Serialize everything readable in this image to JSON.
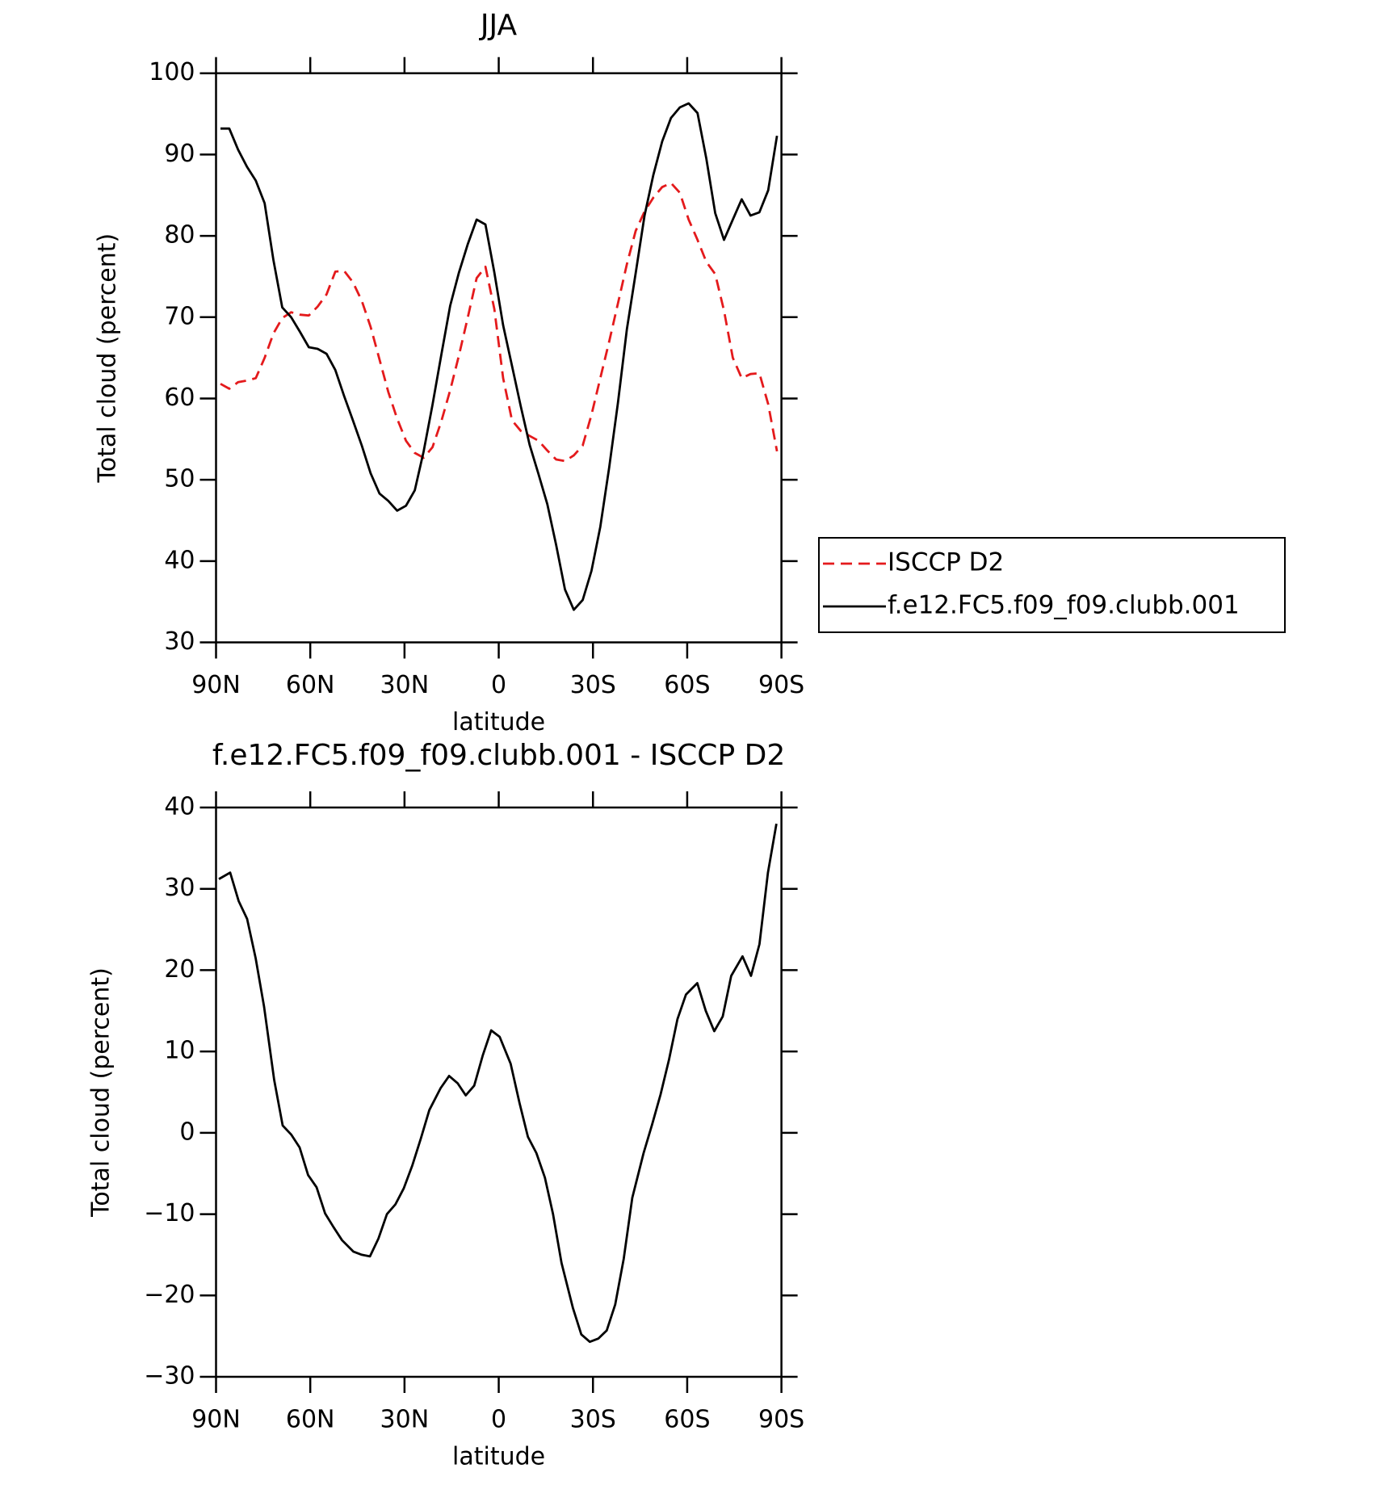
{
  "chart_data": [
    {
      "type": "line",
      "title": "JJA",
      "xlabel": "latitude",
      "ylabel": "Total cloud (percent)",
      "x": [
        88.59,
        85.78,
        82.97,
        80.16,
        77.34,
        74.53,
        71.72,
        68.91,
        66.09,
        63.28,
        60.47,
        57.66,
        54.84,
        52.03,
        49.22,
        46.41,
        43.59,
        40.78,
        37.97,
        35.16,
        32.34,
        29.53,
        26.72,
        23.91,
        21.09,
        18.28,
        15.47,
        12.66,
        9.84,
        7.03,
        4.22,
        1.41,
        -1.41,
        -4.22,
        -7.03,
        -9.84,
        -12.66,
        -15.47,
        -18.28,
        -21.09,
        -23.91,
        -26.72,
        -29.53,
        -32.34,
        -35.16,
        -37.97,
        -40.78,
        -43.59,
        -46.41,
        -49.22,
        -52.03,
        -54.84,
        -57.66,
        -60.47,
        -63.28,
        -66.09,
        -68.91,
        -71.72,
        -74.53,
        -77.34,
        -80.16,
        -82.97,
        -85.78,
        -88.59
      ],
      "series": [
        {
          "name": "ISCCP D2",
          "color": "#e41a1c",
          "line_style": "dashed",
          "values": [
            61.8,
            61.2,
            62,
            62.2,
            62.5,
            65,
            68,
            69.9,
            70.6,
            70.3,
            70.2,
            71.3,
            72.8,
            75.6,
            75.7,
            74.3,
            72,
            68.8,
            64.8,
            60.8,
            57.5,
            54.8,
            53.3,
            52.7,
            54,
            57.2,
            61,
            65.3,
            70,
            74.8,
            76.2,
            71,
            62.5,
            57.3,
            56,
            55.4,
            54.8,
            53.6,
            52.5,
            52.3,
            53,
            54.2,
            58,
            62.5,
            67,
            71.7,
            76.5,
            80.6,
            83,
            84.7,
            86,
            86.5,
            85.3,
            82,
            79.5,
            76.8,
            75.3,
            70.8,
            65,
            62.5,
            63,
            63.1,
            59.3,
            53.5
          ]
        },
        {
          "name": "f.e12.FC5.f09_f09.clubb.001",
          "color": "#000000",
          "line_style": "solid",
          "values": [
            93.2,
            93.2,
            90.6,
            88.5,
            86.8,
            84,
            77,
            71.2,
            70,
            68.2,
            66.3,
            66.1,
            65.5,
            63.5,
            60.3,
            57.3,
            54.2,
            50.8,
            48.3,
            47.4,
            46.2,
            46.8,
            48.7,
            53.5,
            59.2,
            65.4,
            71.4,
            75.5,
            79,
            82,
            81.4,
            75.5,
            69,
            64,
            59,
            54.3,
            50.7,
            47,
            42,
            36.5,
            34,
            35.2,
            38.8,
            44.2,
            51.5,
            59.5,
            68.5,
            75.4,
            82.5,
            87.5,
            91.6,
            94.5,
            95.8,
            96.3,
            95.1,
            89.5,
            82.8,
            79.5,
            82,
            84.5,
            82.5,
            82.9,
            85.6,
            92.3
          ]
        }
      ],
      "xlim": [
        90,
        -90
      ],
      "xticks": [
        {
          "value": 90,
          "label": "90N"
        },
        {
          "value": 60,
          "label": "60N"
        },
        {
          "value": 30,
          "label": "30N"
        },
        0,
        {
          "value": -30,
          "label": "30S"
        },
        {
          "value": -60,
          "label": "60S"
        },
        {
          "value": -90,
          "label": "90S"
        }
      ],
      "ylim": [
        30,
        100
      ],
      "yticks": [
        30,
        40,
        50,
        60,
        70,
        80,
        90,
        100
      ],
      "legend": "right"
    },
    {
      "type": "line",
      "title": "f.e12.FC5.f09_f09.clubb.001 - ISCCP D2",
      "xlabel": "latitude",
      "ylabel": "Total cloud (percent)",
      "x": [
        89.1,
        85.5,
        82.8,
        80.1,
        77.4,
        74.7,
        71.5,
        68.8,
        66.1,
        63.4,
        60.7,
        58,
        55.3,
        52.6,
        49.9,
        46.3,
        43.6,
        41,
        38.3,
        35.6,
        32.9,
        30.2,
        27.5,
        24.8,
        22.1,
        18.5,
        15.8,
        13.1,
        10.5,
        7.8,
        5.1,
        2.4,
        -0.3,
        -3.8,
        -6.6,
        -9.3,
        -12,
        -14.7,
        -17.3,
        -20,
        -23.6,
        -26.3,
        -29,
        -31.7,
        -34.4,
        -37.1,
        -39.8,
        -42.5,
        -46.1,
        -48.8,
        -51.5,
        -54.2,
        -56.9,
        -59.6,
        -63.2,
        -65.9,
        -68.6,
        -71.3,
        -74,
        -77.6,
        -80.3,
        -83,
        -85.7,
        -88.4
      ],
      "values": [
        31.2,
        32,
        28.5,
        26.3,
        21.5,
        15.5,
        6.5,
        0.9,
        -0.2,
        -1.8,
        -5.2,
        -6.7,
        -9.9,
        -11.6,
        -13.2,
        -14.6,
        -15,
        -15.2,
        -13,
        -10,
        -8.8,
        -6.8,
        -4,
        -0.7,
        2.8,
        5.5,
        7,
        6.1,
        4.6,
        5.8,
        9.5,
        12.6,
        11.8,
        8.5,
        3.7,
        -0.5,
        -2.5,
        -5.5,
        -10,
        -16,
        -21.5,
        -24.8,
        -25.7,
        -25.3,
        -24.3,
        -21.1,
        -15.5,
        -8,
        -2.5,
        1,
        4.7,
        9,
        14,
        17,
        18.4,
        15,
        12.5,
        14.3,
        19.3,
        21.7,
        19.3,
        23.2,
        32,
        38
      ],
      "color": "#000000",
      "xlim": [
        90,
        -90
      ],
      "xticks": [
        {
          "value": 90,
          "label": "90N"
        },
        {
          "value": 60,
          "label": "60N"
        },
        {
          "value": 30,
          "label": "30N"
        },
        0,
        {
          "value": -30,
          "label": "30S"
        },
        {
          "value": -60,
          "label": "60S"
        },
        {
          "value": -90,
          "label": "90S"
        }
      ],
      "ylim": [
        -30,
        40
      ],
      "yticks": [
        {
          "value": -30,
          "label": "−30"
        },
        {
          "value": -20,
          "label": "−20"
        },
        {
          "value": -10,
          "label": "−10"
        },
        0,
        10,
        20,
        30,
        40
      ]
    }
  ]
}
